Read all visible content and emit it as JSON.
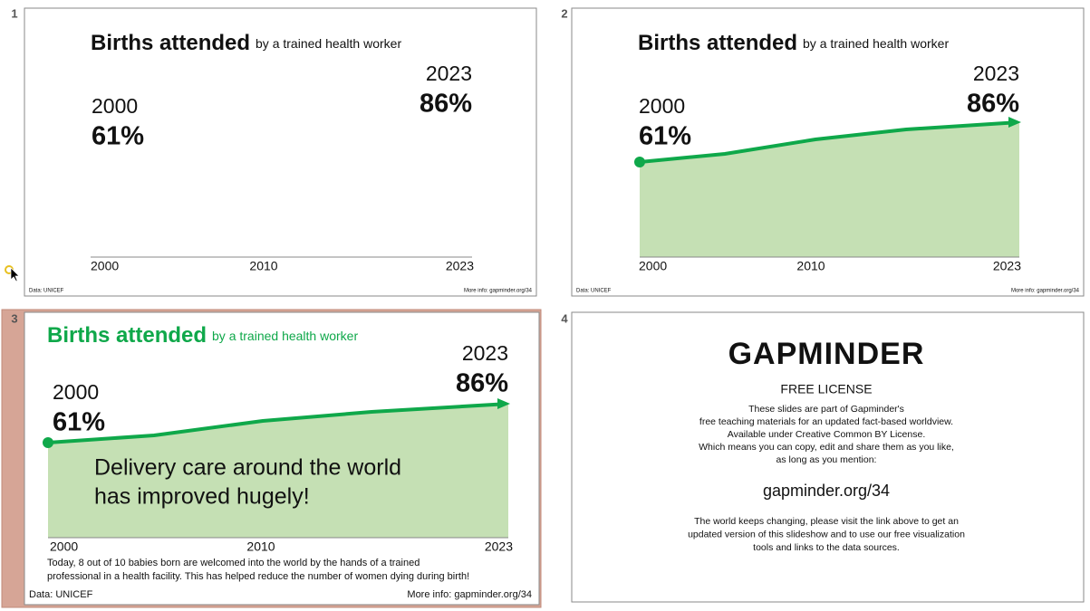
{
  "slides": [
    {
      "number": "1",
      "title": "Births attended",
      "subtitle": "by a trained health worker",
      "start_year": "2000",
      "start_value": "61%",
      "end_year": "2023",
      "end_value": "86%",
      "axis_labels": [
        "2000",
        "2010",
        "2023"
      ],
      "source": "Data: UNICEF",
      "more_info": "More info: gapminder.org/34"
    },
    {
      "number": "2",
      "title": "Births attended",
      "subtitle": "by a trained health worker",
      "start_year": "2000",
      "start_value": "61%",
      "end_year": "2023",
      "end_value": "86%",
      "axis_labels": [
        "2000",
        "2010",
        "2023"
      ],
      "source": "Data: UNICEF",
      "more_info": "More info: gapminder.org/34"
    },
    {
      "number": "3",
      "title": "Births attended",
      "subtitle": "by a trained health worker",
      "start_year": "2000",
      "start_value": "61%",
      "end_year": "2023",
      "end_value": "86%",
      "axis_labels": [
        "2000",
        "2010",
        "2023"
      ],
      "headline": [
        "Delivery care around the world",
        "has improved hugely!"
      ],
      "caption": [
        "Today, 8 out of 10 babies born are welcomed into the world by the hands of a trained",
        "professional in a health facility. This has helped reduce the number of women dying during birth!"
      ],
      "source": "Data: UNICEF",
      "more_info": "More info: gapminder.org/34"
    },
    {
      "number": "4",
      "logo": "GAPMINDER",
      "license_title": "FREE LICENSE",
      "license_lines": [
        "These slides are part of Gapminder's",
        "free teaching materials for an updated fact-based worldview.",
        "Available under Creative Common BY License.",
        "Which means you can copy, edit and share them as you like,",
        "as long as you mention:"
      ],
      "link": "gapminder.org/34",
      "closing_lines": [
        "The world keeps changing, please visit the link above to get an",
        "updated version of this slideshow and to use our free visualization",
        "tools and links to the data sources."
      ]
    }
  ]
}
